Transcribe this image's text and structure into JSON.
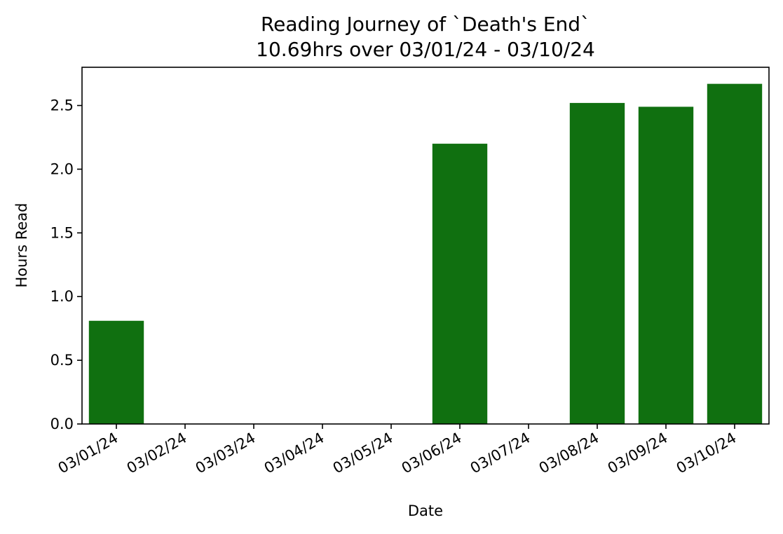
{
  "chart_data": {
    "type": "bar",
    "title": "Reading Journey of `Death's End`",
    "subtitle": "10.69hrs over 03/01/24 - 03/10/24",
    "xlabel": "Date",
    "ylabel": "Hours Read",
    "categories": [
      "03/01/24",
      "03/02/24",
      "03/03/24",
      "03/04/24",
      "03/05/24",
      "03/06/24",
      "03/07/24",
      "03/08/24",
      "03/09/24",
      "03/10/24"
    ],
    "values": [
      0.81,
      0,
      0,
      0,
      0,
      2.2,
      0,
      2.52,
      2.49,
      2.67
    ],
    "ylim": [
      0,
      2.8
    ],
    "yticks": [
      0.0,
      0.5,
      1.0,
      1.5,
      2.0,
      2.5
    ],
    "ytick_labels": [
      "0.0",
      "0.5",
      "1.0",
      "1.5",
      "2.0",
      "2.5"
    ],
    "bar_color": "#107010",
    "grid": false,
    "legend": "none"
  }
}
